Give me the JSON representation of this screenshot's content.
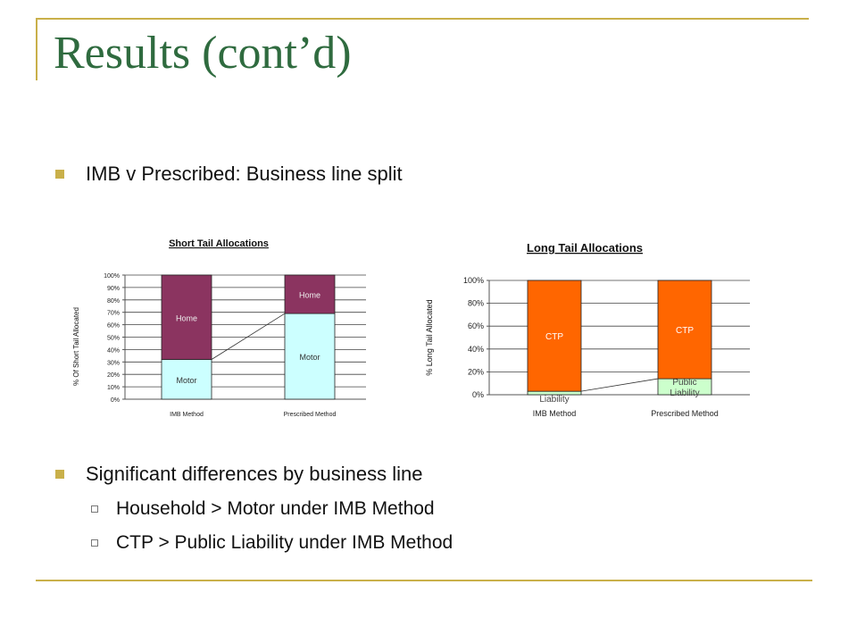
{
  "slide": {
    "title": "Results (cont’d)",
    "bullet1": "IMB v Prescribed: Business line split",
    "bullet2": "Significant differences by business line",
    "sub1": "Household > Motor under IMB Method",
    "sub2": "CTP > Public Liability under IMB Method"
  },
  "colors": {
    "accent": "#C9B04A",
    "title": "#2F6B3F",
    "home": "#8B3460",
    "motor": "#CCFFFF",
    "ctp": "#FF6600",
    "public_liability": "#CCFFCC"
  },
  "chart_data": [
    {
      "type": "bar",
      "stacked": true,
      "title": "Short Tail Allocations",
      "ylabel": "% Of Short Tail Allocated",
      "xlabel": "",
      "categories": [
        "IMB Method",
        "Prescribed Method"
      ],
      "ylim": [
        0,
        100
      ],
      "yticks": [
        "0%",
        "10%",
        "20%",
        "30%",
        "40%",
        "50%",
        "60%",
        "70%",
        "80%",
        "90%",
        "100%"
      ],
      "series": [
        {
          "name": "Motor",
          "values": [
            32,
            69
          ]
        },
        {
          "name": "Home",
          "values": [
            68,
            31
          ]
        }
      ],
      "grid": true
    },
    {
      "type": "bar",
      "stacked": true,
      "title": "Long Tail Allocations",
      "ylabel": "% Long Tail Allocated",
      "xlabel": "",
      "categories": [
        "IMB Method",
        "Prescribed Method"
      ],
      "ylim": [
        0,
        100
      ],
      "yticks": [
        "0%",
        "20%",
        "40%",
        "60%",
        "80%",
        "100%"
      ],
      "series": [
        {
          "name": "Public Liability",
          "values": [
            3,
            14
          ]
        },
        {
          "name": "CTP",
          "values": [
            97,
            86
          ]
        }
      ],
      "grid": true
    }
  ]
}
